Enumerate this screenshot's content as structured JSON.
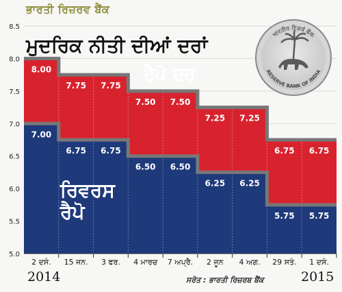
{
  "header": {
    "subtitle": "ਭਾਰਤੀ ਰਿਜ਼ਰਵ ਬੈਂਕ",
    "title": "ਮੁਦਰਿਕ ਨੀਤੀ ਦੀਆਂ ਦਰਾਂ"
  },
  "colors": {
    "repo_band": "#d8232f",
    "reverse_band": "#1f3a7a",
    "step_line": "#777777",
    "tick_label": "#222222"
  },
  "seal": {
    "ring_text_top": "भारतीय रिज़र्व बैंक",
    "ring_text_bottom": "RESERVE BANK OF INDIA"
  },
  "source_note": "ਸਰੋਤ : ਭਾਰਤੀ ਰਿਜ਼ਰਬ ਬੈਂਕ",
  "years": {
    "start": "2014",
    "end": "2015"
  },
  "chart_data": {
    "type": "area",
    "categories": [
      "2 ਦਸੰ.",
      "15 ਜਨ.",
      "3 ਫਰ.",
      "4 ਮਾਰਚ",
      "7 ਅਪ੍ਰੈ.",
      "2 ਜੂਨ",
      "4 ਅਗ.",
      "29 ਸਤੰ.",
      "1 ਦਸੰ."
    ],
    "series": [
      {
        "name": "ਰੈਪੋ ਦਰ",
        "values": [
          8.0,
          7.75,
          7.75,
          7.5,
          7.5,
          7.25,
          7.25,
          6.75,
          6.75
        ]
      },
      {
        "name": "ਰਿਵਰਸ ਰੈਪੋ",
        "values": [
          7.0,
          6.75,
          6.75,
          6.5,
          6.5,
          6.25,
          6.25,
          5.75,
          5.75
        ]
      }
    ],
    "value_labels": {
      "repo": [
        "8.00",
        "7.75",
        "7.75",
        "7.50",
        "7.50",
        "7.25",
        "7.25",
        "6.75",
        "6.75"
      ],
      "reverse": [
        "7.00",
        "6.75",
        "6.75",
        "6.50",
        "6.50",
        "6.25",
        "6.25",
        "5.75",
        "5.75"
      ]
    },
    "yticks": [
      "5.0",
      "5.5",
      "6.0",
      "6.5",
      "7.0",
      "7.5",
      "8.0",
      "8.5"
    ],
    "ylim": [
      5.0,
      8.5
    ],
    "grid": true
  }
}
